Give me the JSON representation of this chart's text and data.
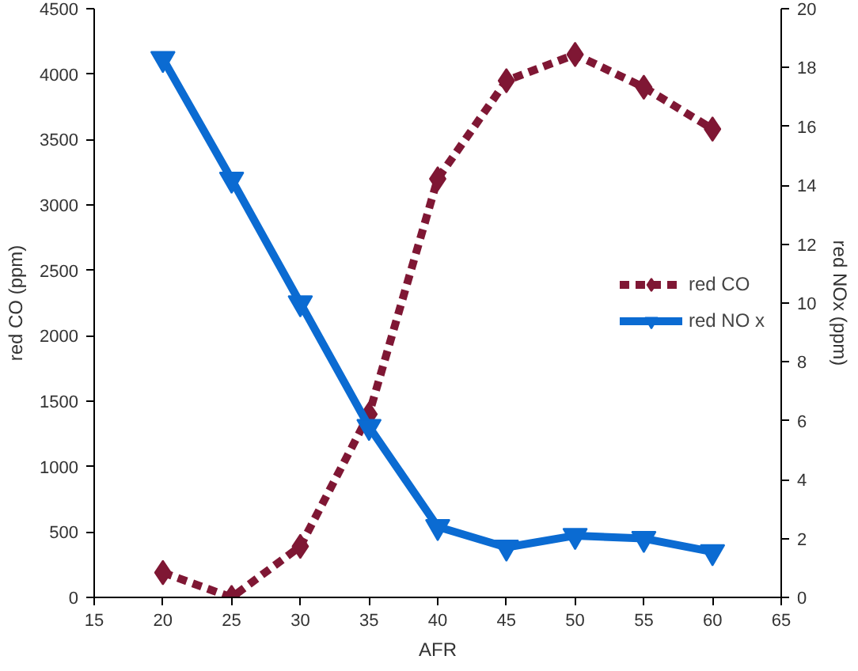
{
  "chart_data": {
    "type": "line",
    "xlabel": "AFR",
    "ylabel": "red CO (ppm)",
    "y2label": "red NOx (ppm)",
    "x": [
      20,
      25,
      30,
      35,
      40,
      45,
      50,
      55,
      60
    ],
    "series": [
      {
        "name": "red CO",
        "color": "#7f1734",
        "values": [
          190,
          0,
          390,
          1400,
          3200,
          3950,
          4150,
          3900,
          3580
        ],
        "marker": "diamond",
        "line_style": "dashed"
      },
      {
        "name": "red NO x",
        "color": "#0b6bd2",
        "values": [
          18.3,
          14.2,
          10,
          5.8,
          2.4,
          1.7,
          2.1,
          2.0,
          1.55
        ],
        "marker": "triangle",
        "line_style": "solid",
        "axis": "y2"
      }
    ],
    "xlim": [
      15,
      65
    ],
    "xticks": [
      15,
      20,
      25,
      30,
      35,
      40,
      45,
      50,
      55,
      60,
      65
    ],
    "ylim": [
      0,
      4500
    ],
    "yticks": [
      0,
      500,
      1000,
      1500,
      2000,
      2500,
      3000,
      3500,
      4000,
      4500
    ],
    "y2lim": [
      0,
      20
    ],
    "y2ticks": [
      0,
      2,
      4,
      6,
      8,
      10,
      12,
      14,
      16,
      18,
      20
    ],
    "grid": false,
    "legend": "right"
  }
}
